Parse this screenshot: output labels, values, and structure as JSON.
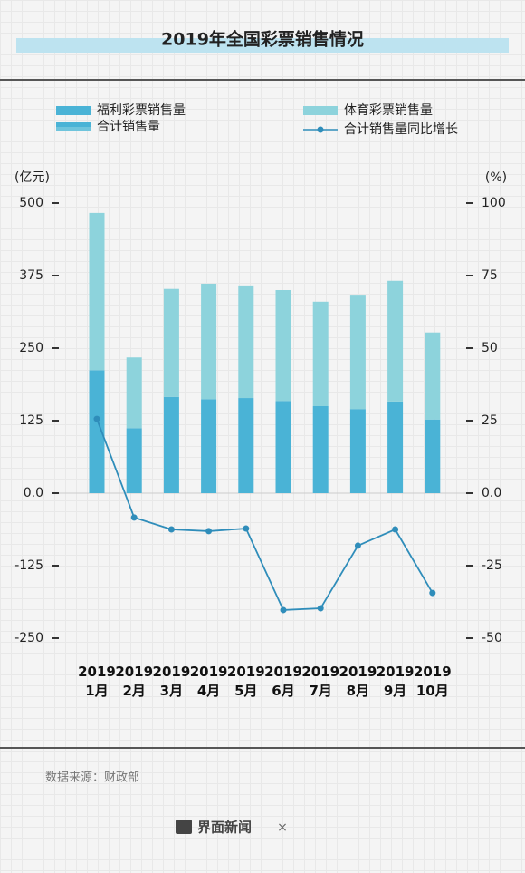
{
  "chart_data": {
    "type": "bar",
    "title": "2019年全国彩票销售情况",
    "y_label": "(亿元)",
    "y2_label": "(%)",
    "categories": [
      "2019\n1月",
      "2019\n2月",
      "2019\n3月",
      "2019\n4月",
      "2019\n5月",
      "2019\n6月",
      "2019\n7月",
      "2019\n8月",
      "2019\n9月",
      "2019\n10月"
    ],
    "series": [
      {
        "name": "福利彩票销售量",
        "color": "#4ab3d6",
        "values": [
          212,
          112,
          166,
          162,
          164,
          159,
          150,
          145,
          158,
          127
        ]
      },
      {
        "name": "体育彩票销售量",
        "color": "#8dd3dc",
        "values": [
          271,
          122,
          186,
          199,
          194,
          191,
          180,
          197,
          208,
          150
        ]
      },
      {
        "name": "合计销售量同比增长",
        "color": "#2f8dba",
        "type": "line",
        "axis": "y2",
        "values": [
          25.6,
          -8.4,
          -12.5,
          -13.1,
          -12.2,
          -40.3,
          -39.7,
          -18.1,
          -12.5,
          -34.4
        ]
      }
    ],
    "total_legend": "合计销售量",
    "ylim": [
      -250,
      500
    ],
    "yticks": [
      -250,
      -125,
      {
        "value": 0,
        "label": "0.0"
      },
      125,
      250,
      375,
      500
    ],
    "y2lim": [
      -50,
      100
    ],
    "y2ticks": [
      -50,
      -25,
      {
        "value": 0,
        "label": "0.0"
      },
      25,
      50,
      75,
      100
    ],
    "source": "数据来源：财政部",
    "brand": "界面新闻",
    "brand_sep": "×"
  }
}
